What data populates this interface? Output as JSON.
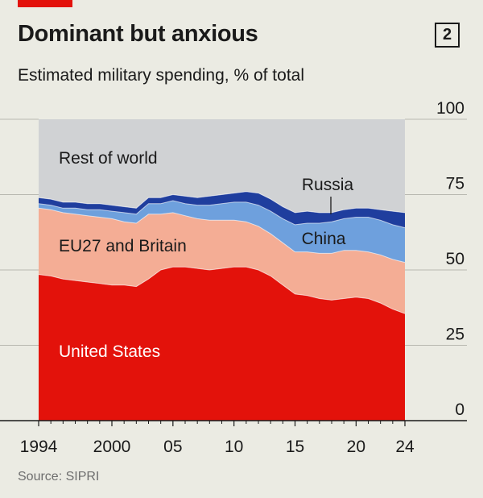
{
  "header": {
    "title": "Dominant but anxious",
    "subtitle": "Estimated military spending, % of total",
    "figure_number": "2"
  },
  "footer": {
    "source": "Source: SIPRI"
  },
  "colors": {
    "background": "#ebebe3",
    "united_states": "#e3120b",
    "eu27_britain": "#f4ad95",
    "china": "#6ea0dd",
    "russia": "#1f3e9e",
    "rest_of_world": "#d0d2d4",
    "accent_tab": "#e3120b"
  },
  "chart_data": {
    "type": "area",
    "stacked": true,
    "title": "Dominant but anxious",
    "subtitle": "Estimated military spending, % of total",
    "xlabel": "",
    "ylabel": "",
    "xlim": [
      1994,
      2024
    ],
    "ylim": [
      0,
      100
    ],
    "yticks": [
      0,
      25,
      50,
      75,
      100
    ],
    "ytick_labels": [
      "0",
      "25",
      "50",
      "75",
      "100"
    ],
    "xticks": [
      1994,
      2000,
      2005,
      2010,
      2015,
      2020,
      2024
    ],
    "xtick_labels": [
      "1994",
      "2000",
      "05",
      "10",
      "15",
      "20",
      "24"
    ],
    "grid": "horizontal",
    "x": [
      1994,
      1995,
      1996,
      1997,
      1998,
      1999,
      2000,
      2001,
      2002,
      2003,
      2004,
      2005,
      2006,
      2007,
      2008,
      2009,
      2010,
      2011,
      2012,
      2013,
      2014,
      2015,
      2016,
      2017,
      2018,
      2019,
      2020,
      2021,
      2022,
      2023,
      2024
    ],
    "series": [
      {
        "name": "United States",
        "values": [
          48.5,
          48,
          47,
          46.5,
          46,
          45.5,
          45,
          45,
          44.5,
          47,
          50,
          51,
          51,
          50.5,
          50,
          50.5,
          51,
          51,
          50,
          48,
          45,
          42,
          41.5,
          40.5,
          40,
          40.5,
          41,
          40.5,
          39,
          37,
          35.5
        ]
      },
      {
        "name": "EU27 and Britain",
        "values": [
          22,
          22,
          22,
          22,
          22,
          22,
          22,
          21,
          21,
          21.5,
          18.5,
          18,
          17,
          16.5,
          16.5,
          16,
          15.5,
          15,
          14.5,
          14,
          14,
          14,
          14.5,
          15,
          15.5,
          16,
          15.5,
          15.5,
          16,
          16.5,
          17
        ]
      },
      {
        "name": "China",
        "values": [
          1.5,
          1.5,
          1.5,
          2,
          2,
          2.5,
          2.5,
          3,
          3,
          3.5,
          3.5,
          4,
          4,
          4.5,
          5,
          5.5,
          6,
          6.5,
          7,
          7.5,
          8,
          9,
          9.5,
          10,
          10.5,
          10.5,
          11,
          11.5,
          11.5,
          11.5,
          11.5
        ]
      },
      {
        "name": "Russia",
        "values": [
          2,
          2,
          2,
          2,
          2,
          2,
          2,
          2,
          2,
          2,
          2,
          2,
          2.5,
          2.5,
          3,
          3,
          3,
          3.5,
          4,
          4,
          4,
          4,
          4,
          3.5,
          3,
          3,
          3,
          3,
          3.5,
          4.5,
          5
        ]
      },
      {
        "name": "Rest of world",
        "values": [
          26,
          26.5,
          27.5,
          27.5,
          28,
          28,
          28.5,
          29,
          29.5,
          26,
          26,
          25,
          25.5,
          26,
          25.5,
          25,
          24.5,
          24,
          24.5,
          26.5,
          29,
          31,
          30.5,
          31,
          31,
          30,
          29.5,
          29.5,
          30,
          30.5,
          31
        ]
      }
    ]
  }
}
